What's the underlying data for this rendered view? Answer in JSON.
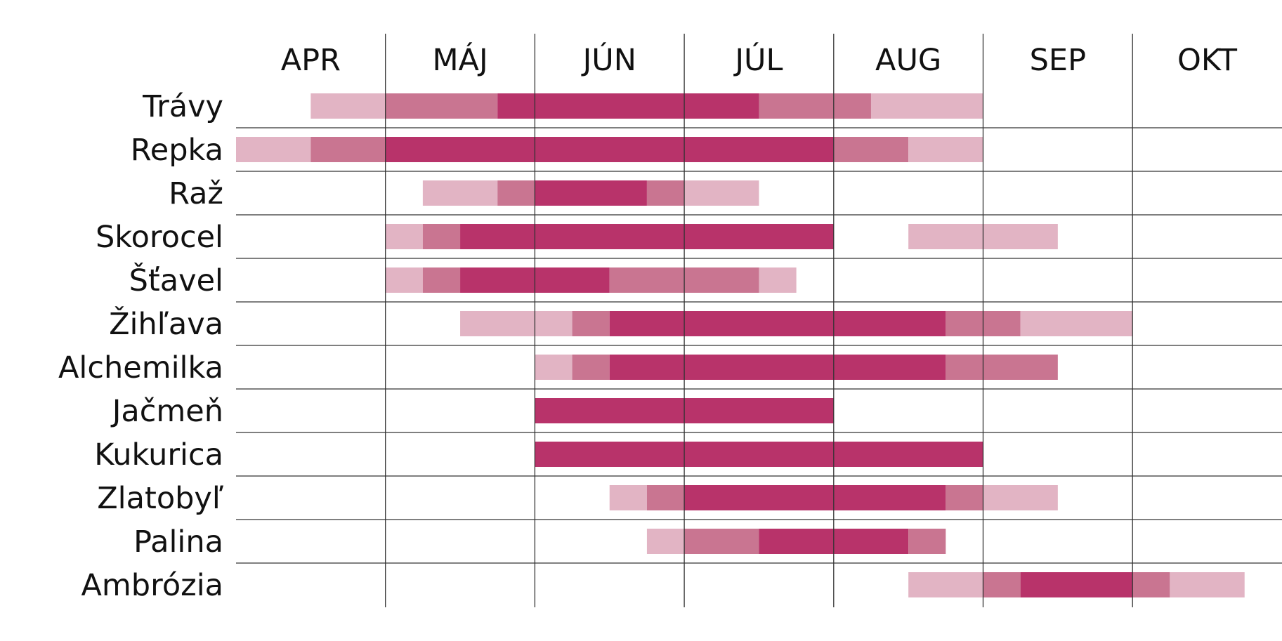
{
  "chart_data": {
    "type": "gantt",
    "months": [
      "APR",
      "MÁJ",
      "JÚN",
      "JÚL",
      "AUG",
      "SEP",
      "OKT"
    ],
    "intensity_colors": {
      "low": "#e2b4c4",
      "medium": "#c97591",
      "high": "#b8336a"
    },
    "grid": true,
    "units": "months (0 = start of APR, 7 = end of OKT)",
    "rows": [
      {
        "name": "Trávy",
        "segments": [
          {
            "start": 0.5,
            "end": 1.0,
            "level": "low"
          },
          {
            "start": 1.0,
            "end": 1.75,
            "level": "medium"
          },
          {
            "start": 1.75,
            "end": 3.5,
            "level": "high"
          },
          {
            "start": 3.5,
            "end": 4.25,
            "level": "medium"
          },
          {
            "start": 4.25,
            "end": 5.0,
            "level": "low"
          }
        ]
      },
      {
        "name": "Repka",
        "segments": [
          {
            "start": 0.0,
            "end": 0.5,
            "level": "low"
          },
          {
            "start": 0.5,
            "end": 1.0,
            "level": "medium"
          },
          {
            "start": 1.0,
            "end": 4.0,
            "level": "high"
          },
          {
            "start": 4.0,
            "end": 4.5,
            "level": "medium"
          },
          {
            "start": 4.5,
            "end": 5.0,
            "level": "low"
          }
        ]
      },
      {
        "name": "Raž",
        "segments": [
          {
            "start": 1.25,
            "end": 1.75,
            "level": "low"
          },
          {
            "start": 1.75,
            "end": 2.0,
            "level": "medium"
          },
          {
            "start": 2.0,
            "end": 2.75,
            "level": "high"
          },
          {
            "start": 2.75,
            "end": 3.0,
            "level": "medium"
          },
          {
            "start": 3.0,
            "end": 3.5,
            "level": "low"
          }
        ]
      },
      {
        "name": "Skorocel",
        "segments": [
          {
            "start": 1.0,
            "end": 1.25,
            "level": "low"
          },
          {
            "start": 1.25,
            "end": 1.5,
            "level": "medium"
          },
          {
            "start": 1.5,
            "end": 4.0,
            "level": "high"
          },
          {
            "start": 4.5,
            "end": 5.5,
            "level": "low"
          }
        ]
      },
      {
        "name": "Šťavel",
        "segments": [
          {
            "start": 1.0,
            "end": 1.25,
            "level": "low"
          },
          {
            "start": 1.25,
            "end": 1.5,
            "level": "medium"
          },
          {
            "start": 1.5,
            "end": 2.5,
            "level": "high"
          },
          {
            "start": 2.5,
            "end": 3.5,
            "level": "medium"
          },
          {
            "start": 3.5,
            "end": 3.75,
            "level": "low"
          }
        ]
      },
      {
        "name": "Žihľava",
        "segments": [
          {
            "start": 1.5,
            "end": 2.25,
            "level": "low"
          },
          {
            "start": 2.25,
            "end": 2.5,
            "level": "medium"
          },
          {
            "start": 2.5,
            "end": 4.75,
            "level": "high"
          },
          {
            "start": 4.75,
            "end": 5.25,
            "level": "medium"
          },
          {
            "start": 5.25,
            "end": 6.0,
            "level": "low"
          }
        ]
      },
      {
        "name": "Alchemilka",
        "segments": [
          {
            "start": 2.0,
            "end": 2.25,
            "level": "low"
          },
          {
            "start": 2.25,
            "end": 2.5,
            "level": "medium"
          },
          {
            "start": 2.5,
            "end": 4.75,
            "level": "high"
          },
          {
            "start": 4.75,
            "end": 5.5,
            "level": "medium"
          }
        ]
      },
      {
        "name": "Jačmeň",
        "segments": [
          {
            "start": 2.0,
            "end": 4.0,
            "level": "high"
          }
        ]
      },
      {
        "name": "Kukurica",
        "segments": [
          {
            "start": 2.0,
            "end": 5.0,
            "level": "high"
          }
        ]
      },
      {
        "name": "Zlatobyľ",
        "segments": [
          {
            "start": 2.5,
            "end": 2.75,
            "level": "low"
          },
          {
            "start": 2.75,
            "end": 3.0,
            "level": "medium"
          },
          {
            "start": 3.0,
            "end": 4.75,
            "level": "high"
          },
          {
            "start": 4.75,
            "end": 5.0,
            "level": "medium"
          },
          {
            "start": 5.0,
            "end": 5.5,
            "level": "low"
          }
        ]
      },
      {
        "name": "Palina",
        "segments": [
          {
            "start": 2.75,
            "end": 3.0,
            "level": "low"
          },
          {
            "start": 3.0,
            "end": 3.5,
            "level": "medium"
          },
          {
            "start": 3.5,
            "end": 4.5,
            "level": "high"
          },
          {
            "start": 4.5,
            "end": 4.75,
            "level": "medium"
          }
        ]
      },
      {
        "name": "Ambrózia",
        "segments": [
          {
            "start": 4.5,
            "end": 5.0,
            "level": "low"
          },
          {
            "start": 5.0,
            "end": 5.25,
            "level": "medium"
          },
          {
            "start": 5.25,
            "end": 6.0,
            "level": "high"
          },
          {
            "start": 6.0,
            "end": 6.25,
            "level": "medium"
          },
          {
            "start": 6.25,
            "end": 6.75,
            "level": "low"
          }
        ]
      }
    ]
  }
}
